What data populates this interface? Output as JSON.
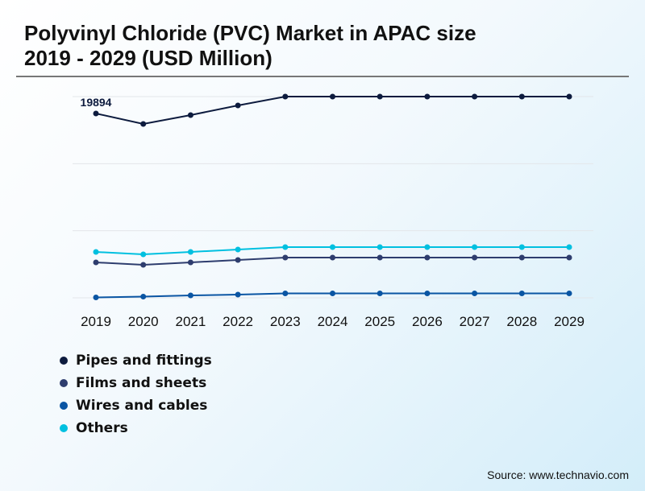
{
  "title_line1": "Polyvinyl Chloride (PVC) Market in APAC size",
  "title_line2": "2019 - 2029 (USD Million)",
  "source": "Source: www.technavio.com",
  "chart_data": {
    "type": "line",
    "title": "Polyvinyl Chloride (PVC) Market in APAC size 2019 - 2029 (USD Million)",
    "categories": [
      "2019",
      "2020",
      "2021",
      "2022",
      "2023",
      "2024",
      "2025",
      "2026",
      "2027",
      "2028",
      "2029"
    ],
    "ylim": [
      0,
      21718
    ],
    "grid": true,
    "legend_placement": "bottom-left",
    "annotations": [
      {
        "series": "Pipes and fittings",
        "x": "2019",
        "label": "19894"
      }
    ],
    "series": [
      {
        "name": "Pipes and fittings",
        "color": "#0d1b3e",
        "values": [
          19894,
          18764,
          19720,
          20762,
          21718,
          21718,
          21718,
          21718,
          21718,
          21718,
          21718
        ]
      },
      {
        "name": "Films and sheets",
        "color": "#2e3d6e",
        "values": [
          3822,
          3562,
          3822,
          4083,
          4344,
          4344,
          4344,
          4344,
          4344,
          4344,
          4344
        ]
      },
      {
        "name": "Wires and cables",
        "color": "#0a55a3",
        "values": [
          43,
          130,
          260,
          347,
          478,
          478,
          478,
          478,
          478,
          478,
          478
        ]
      },
      {
        "name": "Others",
        "color": "#00c0e0",
        "values": [
          4952,
          4691,
          4952,
          5212,
          5473,
          5473,
          5473,
          5473,
          5473,
          5473,
          5473
        ]
      }
    ]
  }
}
